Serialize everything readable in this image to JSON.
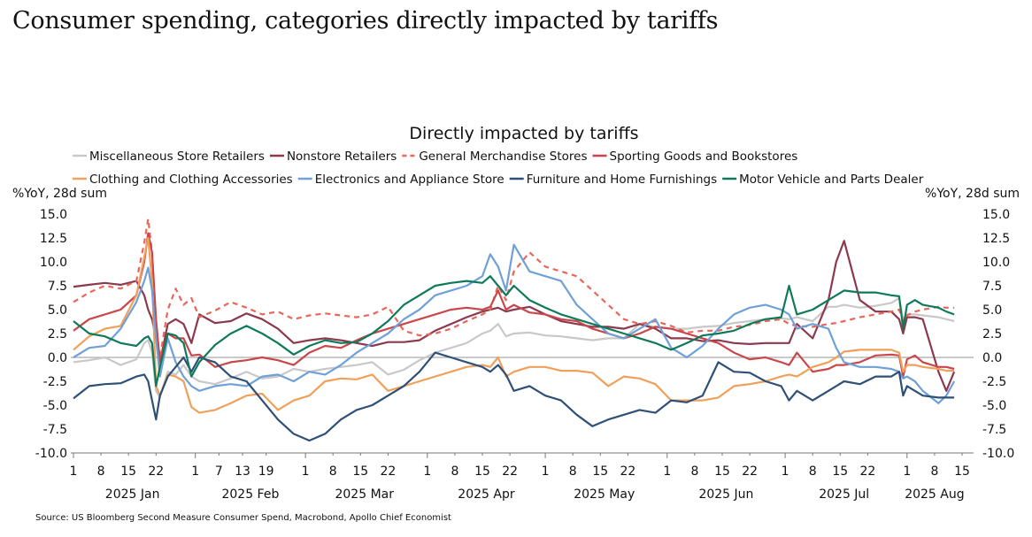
{
  "page": {
    "title": "Consumer spending, categories directly impacted by tariffs",
    "source": "Source: US Bloomberg Second Measure Consumer Spend, Macrobond, Apollo Chief Economist"
  },
  "chart_data": {
    "type": "line",
    "title": "Directly impacted by tariffs",
    "ylabel_left": "%YoY, 28d sum",
    "ylabel_right": "%YoY, 28d sum",
    "ylim": [
      -10.0,
      15.0
    ],
    "yticks": [
      "15.0",
      "12.5",
      "10.0",
      "7.5",
      "5.0",
      "2.5",
      "0.0",
      "-2.5",
      "-5.0",
      "-7.5",
      "-10.0"
    ],
    "ytick_values": [
      15,
      12.5,
      10,
      7.5,
      5,
      2.5,
      0,
      -2.5,
      -5,
      -7.5,
      -10
    ],
    "x_unit": "day of year 2025 (Jan 1 = 0)",
    "xlim": [
      0,
      226
    ],
    "xticks": [
      {
        "day": 0,
        "label": "1"
      },
      {
        "day": 7,
        "label": "8"
      },
      {
        "day": 14,
        "label": "15"
      },
      {
        "day": 21,
        "label": "22"
      },
      {
        "day": 31,
        "label": "1"
      },
      {
        "day": 37,
        "label": "7"
      },
      {
        "day": 43,
        "label": "13"
      },
      {
        "day": 49,
        "label": "19"
      },
      {
        "day": 59,
        "label": "1"
      },
      {
        "day": 66,
        "label": "8"
      },
      {
        "day": 73,
        "label": "15"
      },
      {
        "day": 80,
        "label": "22"
      },
      {
        "day": 90,
        "label": "1"
      },
      {
        "day": 97,
        "label": "8"
      },
      {
        "day": 104,
        "label": "15"
      },
      {
        "day": 111,
        "label": "22"
      },
      {
        "day": 120,
        "label": "1"
      },
      {
        "day": 127,
        "label": "8"
      },
      {
        "day": 134,
        "label": "15"
      },
      {
        "day": 141,
        "label": "22"
      },
      {
        "day": 151,
        "label": "1"
      },
      {
        "day": 158,
        "label": "8"
      },
      {
        "day": 165,
        "label": "15"
      },
      {
        "day": 172,
        "label": "22"
      },
      {
        "day": 181,
        "label": "1"
      },
      {
        "day": 188,
        "label": "8"
      },
      {
        "day": 195,
        "label": "15"
      },
      {
        "day": 202,
        "label": "22"
      },
      {
        "day": 212,
        "label": "1"
      },
      {
        "day": 219,
        "label": "8"
      },
      {
        "day": 226,
        "label": "15"
      }
    ],
    "month_labels": [
      {
        "day": 15,
        "label": "2025 Jan"
      },
      {
        "day": 45,
        "label": "2025 Feb"
      },
      {
        "day": 74,
        "label": "2025 Mar"
      },
      {
        "day": 105,
        "label": "2025 Apr"
      },
      {
        "day": 135,
        "label": "2025 May"
      },
      {
        "day": 166,
        "label": "2025 Jun"
      },
      {
        "day": 196,
        "label": "2025 Jul"
      },
      {
        "day": 219,
        "label": "2025 Aug"
      }
    ],
    "legend_position": "top",
    "x": [
      0,
      4,
      8,
      12,
      16,
      18,
      19,
      20,
      21,
      22,
      24,
      26,
      28,
      30,
      32,
      36,
      40,
      44,
      48,
      52,
      56,
      60,
      64,
      68,
      72,
      76,
      80,
      84,
      88,
      92,
      96,
      100,
      104,
      106,
      108,
      110,
      112,
      116,
      120,
      124,
      128,
      132,
      136,
      140,
      144,
      148,
      152,
      156,
      160,
      164,
      168,
      172,
      176,
      180,
      182,
      184,
      188,
      192,
      194,
      196,
      200,
      204,
      208,
      210,
      211,
      212,
      214,
      216,
      220,
      222,
      224
    ],
    "series": [
      {
        "name": "Miscellaneous Store Retailers",
        "color": "#c8c8c8",
        "dash": false,
        "values": [
          -0.5,
          -0.3,
          0.0,
          -0.8,
          -0.2,
          1.5,
          1.8,
          0.5,
          -3.5,
          -4.2,
          -1.5,
          -1.8,
          -0.8,
          -2.0,
          -2.5,
          -2.8,
          -2.2,
          -1.5,
          -2.2,
          -2.0,
          -1.2,
          -1.5,
          -1.2,
          -1.0,
          -0.8,
          -0.5,
          -1.8,
          -1.3,
          -0.3,
          0.5,
          1.0,
          1.5,
          2.5,
          2.8,
          3.5,
          2.2,
          2.5,
          2.6,
          2.3,
          2.2,
          2.0,
          1.8,
          2.0,
          2.0,
          3.5,
          3.2,
          3.0,
          3.0,
          3.2,
          3.3,
          3.6,
          3.8,
          4.0,
          4.1,
          4.0,
          4.2,
          3.8,
          5.3,
          5.3,
          5.5,
          5.2,
          5.4,
          5.7,
          6.2,
          4.0,
          4.5,
          4.5,
          4.4,
          4.2,
          4.0,
          3.8
        ]
      },
      {
        "name": "Nonstore Retailers",
        "color": "#8b3a4e",
        "dash": false,
        "values": [
          7.4,
          7.6,
          7.8,
          7.6,
          8.0,
          6.5,
          5.0,
          4.0,
          2.0,
          -0.5,
          3.5,
          4.0,
          3.5,
          1.5,
          4.5,
          3.6,
          3.8,
          4.6,
          4.0,
          3.0,
          1.5,
          1.8,
          2.0,
          1.8,
          1.5,
          1.2,
          1.6,
          1.6,
          1.8,
          2.8,
          3.5,
          4.2,
          4.8,
          5.0,
          5.2,
          4.8,
          5.0,
          5.3,
          4.5,
          3.8,
          3.5,
          3.2,
          3.2,
          3.0,
          3.5,
          3.0,
          2.0,
          2.0,
          1.7,
          1.8,
          1.5,
          1.4,
          1.5,
          1.5,
          1.5,
          3.5,
          2.0,
          6.0,
          10.0,
          12.2,
          6.0,
          4.8,
          4.8,
          4.0,
          2.5,
          4.2,
          4.2,
          4.0,
          -1.5,
          -3.5,
          -1.5
        ]
      },
      {
        "name": "General Merchandise Stores",
        "color": "#e8665a",
        "dash": true,
        "values": [
          5.8,
          6.8,
          7.5,
          7.2,
          8.0,
          12.0,
          14.5,
          11.0,
          3.0,
          0.0,
          5.0,
          7.2,
          5.5,
          6.2,
          4.2,
          4.9,
          5.8,
          5.2,
          4.5,
          4.8,
          4.0,
          4.4,
          4.6,
          4.4,
          4.2,
          4.5,
          5.3,
          2.8,
          2.3,
          2.5,
          3.0,
          3.8,
          4.5,
          5.0,
          7.5,
          6.0,
          9.0,
          11.0,
          9.5,
          9.0,
          8.5,
          7.0,
          5.5,
          4.0,
          3.5,
          3.8,
          3.3,
          2.6,
          2.8,
          2.8,
          3.2,
          3.4,
          3.8,
          4.0,
          3.5,
          3.3,
          3.2,
          3.5,
          3.6,
          3.8,
          4.2,
          4.5,
          4.8,
          5.0,
          3.8,
          4.4,
          4.8,
          5.0,
          5.3,
          5.2,
          5.2
        ]
      },
      {
        "name": "Sporting Goods and Bookstores",
        "color": "#c9474a",
        "dash": false,
        "values": [
          2.8,
          4.0,
          4.5,
          5.0,
          6.5,
          10.0,
          13.0,
          11.0,
          4.0,
          -0.5,
          2.5,
          2.0,
          2.0,
          0.2,
          0.3,
          -1.0,
          -0.5,
          -0.3,
          0.0,
          -0.3,
          -0.8,
          0.5,
          1.2,
          1.0,
          1.8,
          2.5,
          3.0,
          3.5,
          4.0,
          4.5,
          5.0,
          5.2,
          5.0,
          5.3,
          7.0,
          5.0,
          5.5,
          4.7,
          4.5,
          4.0,
          3.8,
          3.0,
          2.5,
          2.0,
          2.5,
          3.2,
          3.0,
          2.5,
          2.0,
          1.5,
          0.5,
          -0.2,
          0.0,
          -0.5,
          -0.8,
          0.5,
          -1.5,
          -1.2,
          -0.8,
          -0.8,
          -0.5,
          0.2,
          0.3,
          0.2,
          -2.0,
          -0.2,
          0.2,
          -0.5,
          -1.0,
          -1.0,
          -1.2
        ]
      },
      {
        "name": "Clothing and Clothing Accessories",
        "color": "#f0a05a",
        "dash": false,
        "values": [
          0.8,
          2.2,
          3.0,
          3.3,
          6.5,
          10.5,
          12.5,
          8.0,
          -3.0,
          -4.0,
          -1.8,
          -2.0,
          -2.5,
          -5.2,
          -5.8,
          -5.5,
          -4.8,
          -4.0,
          -3.8,
          -5.5,
          -4.5,
          -4.0,
          -2.5,
          -2.2,
          -2.3,
          -1.8,
          -3.5,
          -3.0,
          -2.5,
          -2.0,
          -1.5,
          -1.0,
          -0.8,
          -1.0,
          0.0,
          -2.0,
          -1.5,
          -1.0,
          -1.0,
          -1.4,
          -1.4,
          -1.6,
          -3.0,
          -2.0,
          -2.2,
          -2.8,
          -4.5,
          -4.5,
          -4.5,
          -4.2,
          -3.0,
          -2.8,
          -2.5,
          -2.0,
          -1.8,
          -2.0,
          -1.0,
          -0.5,
          0.0,
          0.6,
          0.8,
          0.8,
          0.8,
          0.5,
          -1.5,
          -0.8,
          -0.8,
          -1.0,
          -1.2,
          -1.4,
          -1.4
        ]
      },
      {
        "name": "Electronics and Appliance Store",
        "color": "#6fa0d8",
        "dash": false,
        "values": [
          0.0,
          1.0,
          1.2,
          3.0,
          5.8,
          8.0,
          9.4,
          7.0,
          2.0,
          -2.0,
          2.0,
          -0.5,
          -2.0,
          -3.0,
          -3.5,
          -3.0,
          -2.8,
          -3.0,
          -2.0,
          -1.8,
          -2.5,
          -1.5,
          -1.8,
          -0.8,
          0.5,
          1.5,
          2.5,
          4.0,
          5.0,
          6.5,
          7.0,
          7.5,
          8.5,
          10.8,
          9.5,
          7.0,
          11.8,
          9.0,
          8.5,
          8.0,
          5.5,
          4.0,
          2.5,
          2.0,
          3.0,
          4.0,
          1.0,
          0.0,
          1.2,
          3.0,
          4.5,
          5.2,
          5.5,
          5.0,
          4.5,
          3.0,
          3.5,
          3.0,
          1.0,
          -0.5,
          -1.0,
          -1.0,
          -1.2,
          -1.5,
          -2.2,
          -2.0,
          -2.5,
          -3.5,
          -4.8,
          -4.0,
          -2.5
        ]
      },
      {
        "name": "Furniture and Home Furnishings",
        "color": "#2e5077",
        "dash": false,
        "values": [
          -4.3,
          -3.0,
          -2.8,
          -2.7,
          -2.0,
          -1.8,
          -2.5,
          -4.5,
          -6.5,
          -4.0,
          -2.0,
          -1.0,
          0.0,
          -1.5,
          0.0,
          -0.5,
          -2.0,
          -2.5,
          -4.5,
          -6.5,
          -8.0,
          -8.7,
          -8.0,
          -6.5,
          -5.5,
          -5.0,
          -4.0,
          -3.0,
          -1.5,
          0.5,
          0.0,
          -0.5,
          -1.0,
          -1.5,
          -0.8,
          -1.8,
          -3.5,
          -3.0,
          -4.0,
          -4.5,
          -6.0,
          -7.2,
          -6.5,
          -6.0,
          -5.5,
          -5.8,
          -4.5,
          -4.7,
          -4.0,
          -0.5,
          -1.5,
          -1.6,
          -2.5,
          -3.0,
          -4.5,
          -3.5,
          -4.5,
          -3.5,
          -3.0,
          -2.5,
          -2.8,
          -2.0,
          -2.0,
          -1.5,
          -4.0,
          -3.0,
          -3.5,
          -4.0,
          -4.2,
          -4.2,
          -4.2
        ]
      },
      {
        "name": "Motor Vehicle and Parts Dealer",
        "color": "#0e7a5a",
        "dash": false,
        "values": [
          3.8,
          2.5,
          2.2,
          1.5,
          1.2,
          2.0,
          2.2,
          1.5,
          -3.0,
          -1.0,
          2.5,
          2.3,
          1.5,
          -2.0,
          -0.5,
          1.3,
          2.5,
          3.3,
          2.5,
          1.5,
          0.3,
          1.2,
          1.8,
          1.5,
          1.6,
          2.5,
          3.8,
          5.5,
          6.5,
          7.5,
          7.8,
          8.0,
          7.8,
          8.5,
          7.5,
          6.5,
          7.5,
          6.0,
          5.2,
          4.5,
          4.0,
          3.5,
          3.0,
          2.5,
          2.0,
          1.5,
          0.8,
          1.5,
          2.3,
          2.5,
          2.8,
          3.5,
          4.0,
          4.2,
          7.5,
          4.5,
          5.0,
          6.0,
          6.5,
          7.0,
          6.8,
          6.8,
          6.5,
          6.4,
          3.0,
          5.5,
          6.0,
          5.5,
          5.2,
          4.8,
          4.5
        ]
      }
    ]
  }
}
